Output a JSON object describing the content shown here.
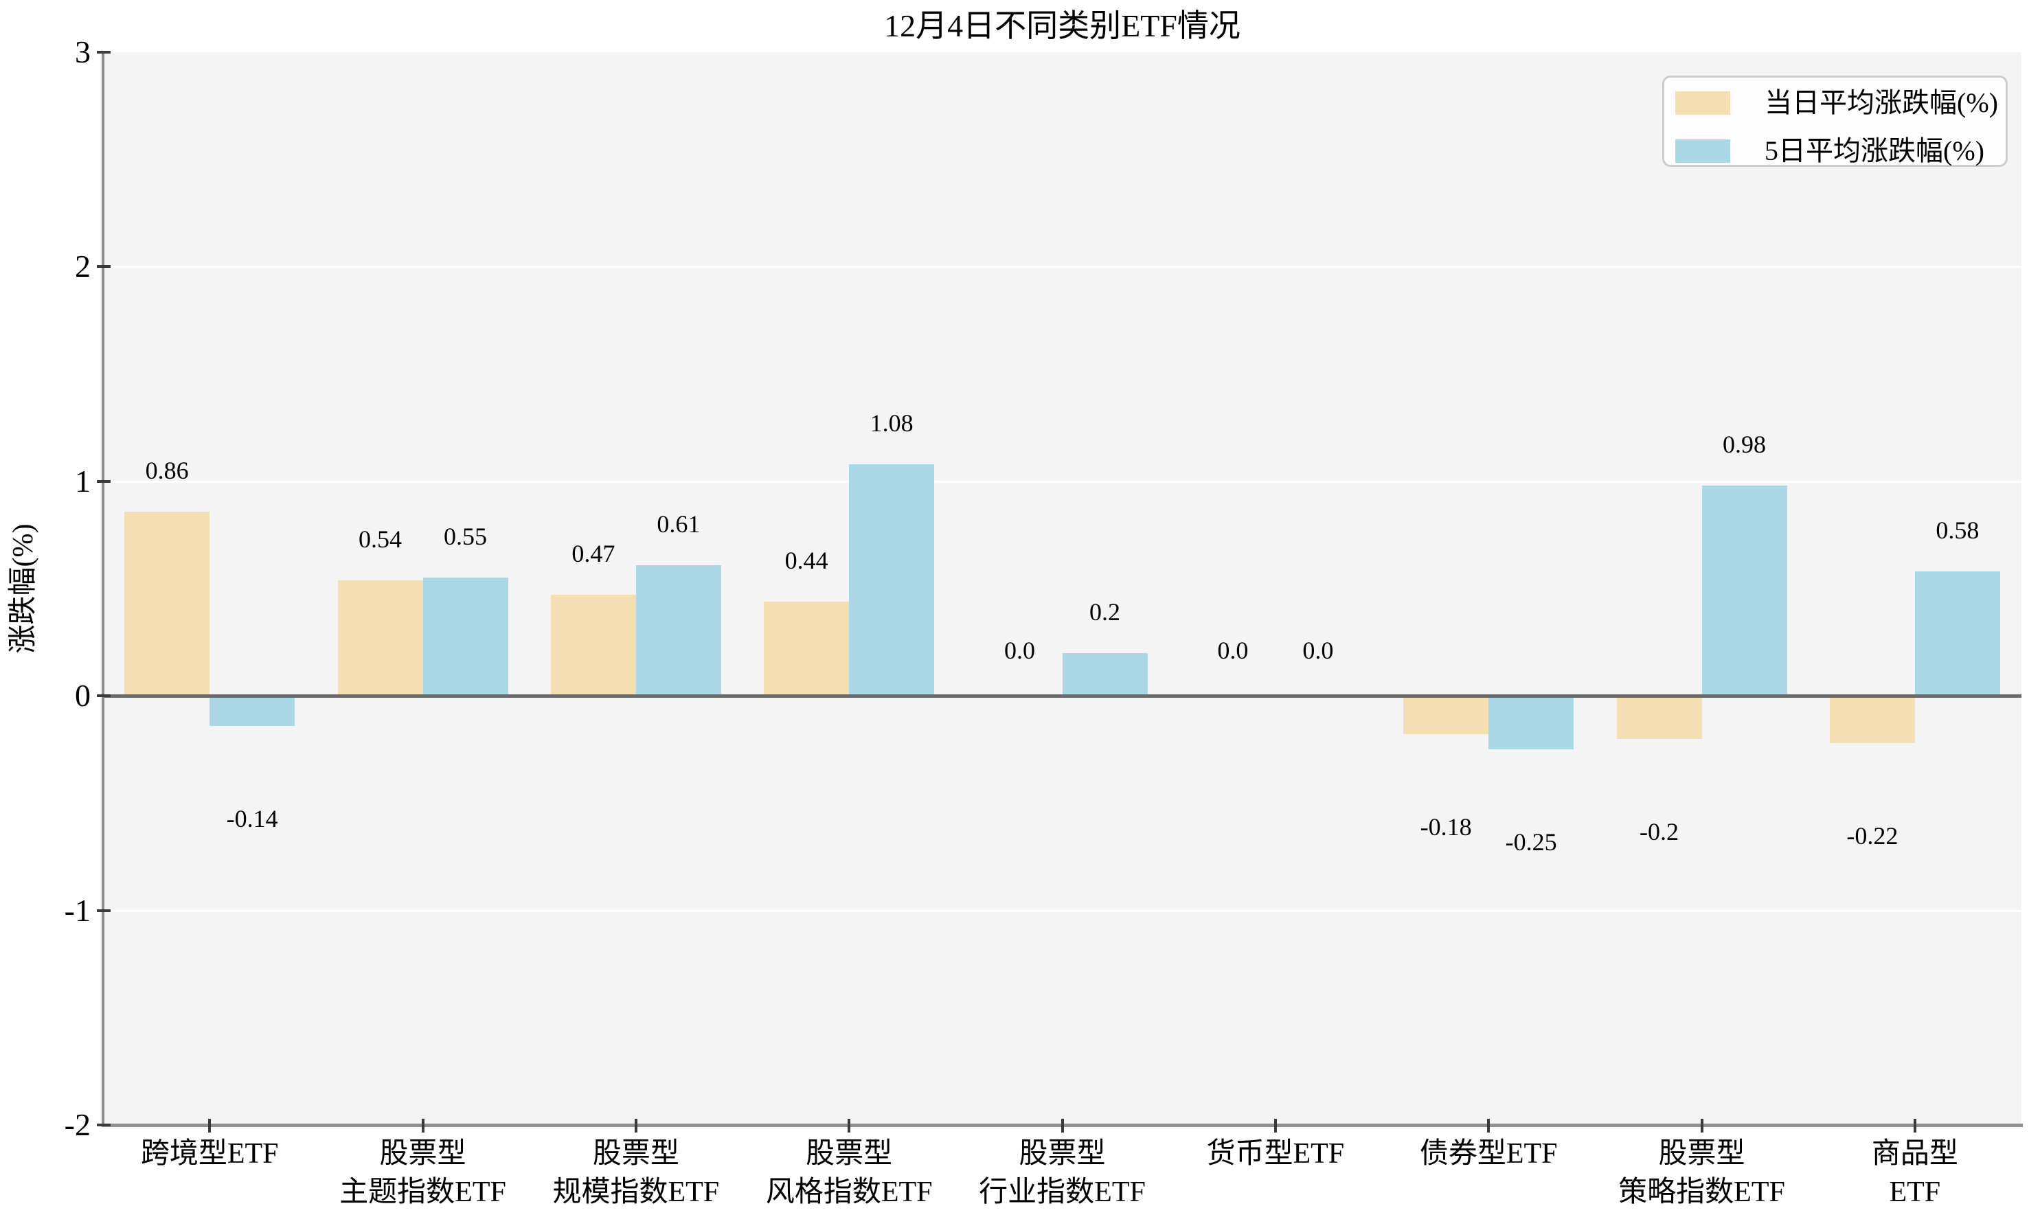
{
  "title": "12月4日不同类别ETF情况",
  "chart_data": {
    "type": "bar",
    "title": "12月4日不同类别ETF情况",
    "xlabel": "",
    "ylabel": "涨跌幅(%)",
    "ylim": [
      -2,
      3
    ],
    "yticks": [
      3,
      2,
      1,
      0,
      -1,
      -2
    ],
    "grid": true,
    "legend_position": "upper right",
    "categories": [
      "跨境型ETF",
      "股票型\n主题指数ETF",
      "股票型\n规模指数ETF",
      "股票型\n风格指数ETF",
      "股票型\n行业指数ETF",
      "货币型ETF",
      "债券型ETF",
      "股票型\n策略指数ETF",
      "商品型ETF"
    ],
    "series": [
      {
        "name": "当日平均涨跌幅(%)",
        "color": "#F5DFB2",
        "values": [
          0.86,
          0.54,
          0.47,
          0.44,
          0.0,
          0.0,
          -0.18,
          -0.2,
          -0.22
        ],
        "labels": [
          "0.86",
          "0.54",
          "0.47",
          "0.44",
          "0.0",
          "0.0",
          "-0.18",
          "-0.2",
          "-0.22"
        ]
      },
      {
        "name": "5日平均涨跌幅(%)",
        "color": "#AAD8E6",
        "values": [
          -0.14,
          0.55,
          0.61,
          1.08,
          0.2,
          0.0,
          -0.25,
          0.98,
          0.58
        ],
        "labels": [
          "-0.14",
          "0.55",
          "0.61",
          "1.08",
          "0.2",
          "0.0",
          "-0.25",
          "0.98",
          "0.58"
        ]
      }
    ]
  },
  "colors": {
    "plot_background": "#F4F4F4",
    "gridline": "#FFFFFF",
    "zero_line": "#6B6B6B",
    "spine": "#8C8C8C",
    "legend_border": "#CCCCCC",
    "text": "#000000"
  }
}
